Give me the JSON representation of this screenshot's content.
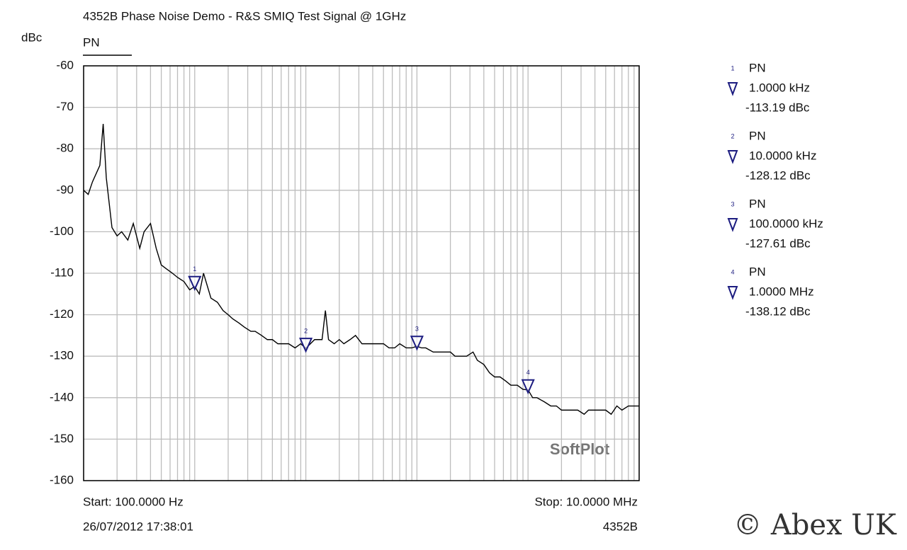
{
  "chart_data": {
    "type": "line",
    "title": "4352B Phase Noise Demo - R&S SMIQ Test Signal @ 1GHz",
    "y_label": "dBc",
    "xscale": "log",
    "xlim": [
      100,
      10000000
    ],
    "ylim": [
      -160,
      -60
    ],
    "yticks": [
      -60,
      -70,
      -80,
      -90,
      -100,
      -110,
      -120,
      -130,
      -140,
      -150,
      -160
    ],
    "xticks": [
      100,
      200,
      300,
      400,
      500,
      600,
      700,
      800,
      900,
      1000,
      2000,
      3000,
      4000,
      5000,
      6000,
      7000,
      8000,
      9000,
      10000,
      20000,
      30000,
      40000,
      50000,
      60000,
      70000,
      80000,
      90000,
      100000,
      200000,
      300000,
      400000,
      500000,
      600000,
      700000,
      800000,
      900000,
      1000000,
      2000000,
      3000000,
      4000000,
      5000000,
      6000000,
      7000000,
      8000000,
      9000000,
      10000000
    ],
    "grid": true,
    "series": [
      {
        "name": "PN",
        "color": "#000000",
        "x": [
          100,
          110,
          120,
          140,
          150,
          160,
          180,
          200,
          220,
          250,
          280,
          320,
          350,
          400,
          450,
          500,
          560,
          630,
          700,
          800,
          900,
          1000,
          1100,
          1200,
          1400,
          1600,
          1800,
          2000,
          2200,
          2500,
          2800,
          3200,
          3500,
          4000,
          4500,
          5000,
          5600,
          6300,
          7000,
          8000,
          9000,
          10000,
          11000,
          12000,
          14000,
          15000,
          16000,
          18000,
          20000,
          22000,
          25000,
          28000,
          32000,
          35000,
          40000,
          45000,
          50000,
          56000,
          63000,
          70000,
          80000,
          90000,
          100000,
          110000,
          120000,
          140000,
          160000,
          180000,
          200000,
          220000,
          250000,
          280000,
          320000,
          350000,
          400000,
          450000,
          500000,
          560000,
          630000,
          700000,
          800000,
          900000,
          1000000,
          1100000,
          1200000,
          1400000,
          1600000,
          1800000,
          2000000,
          2200000,
          2500000,
          2800000,
          3200000,
          3500000,
          4000000,
          4500000,
          5000000,
          5600000,
          6300000,
          7000000,
          8000000,
          9000000,
          10000000
        ],
        "values": [
          -90,
          -91,
          -88,
          -84,
          -74,
          -87,
          -99,
          -101,
          -100,
          -102,
          -98,
          -104,
          -100,
          -98,
          -104,
          -108,
          -109,
          -110,
          -111,
          -112,
          -114,
          -113.19,
          -115,
          -110,
          -116,
          -117,
          -119,
          -120,
          -121,
          -122,
          -123,
          -124,
          -124,
          -125,
          -126,
          -126,
          -127,
          -127,
          -127,
          -128,
          -127,
          -128.12,
          -127,
          -126,
          -126,
          -119,
          -126,
          -127,
          -126,
          -127,
          -126,
          -125,
          -127,
          -127,
          -127,
          -127,
          -127,
          -128,
          -128,
          -127,
          -128,
          -128,
          -127.61,
          -128,
          -128,
          -129,
          -129,
          -129,
          -129,
          -130,
          -130,
          -130,
          -129,
          -131,
          -132,
          -134,
          -135,
          -135,
          -136,
          -137,
          -137,
          -138,
          -138.12,
          -140,
          -140,
          -141,
          -142,
          -142,
          -143,
          -143,
          -143,
          -143,
          -144,
          -143,
          -143,
          -143,
          -143,
          -144,
          -142,
          -143,
          -142,
          -142,
          -142
        ]
      }
    ],
    "markers": {
      "labels": [
        "1",
        "2",
        "3",
        "4"
      ],
      "names": [
        "PN",
        "PN",
        "PN",
        "PN"
      ],
      "color": "#1c1c80",
      "x": [
        1000,
        10000,
        100000,
        1000000
      ],
      "x_labels": [
        "1.0000 kHz",
        "10.0000 kHz",
        "100.0000 kHz",
        "1.0000 MHz"
      ],
      "values": [
        -113.19,
        -128.12,
        -127.61,
        -138.12
      ],
      "value_labels": [
        "-113.19 dBc",
        "-128.12 dBc",
        "-127.61 dBc",
        "-138.12 dBc"
      ]
    },
    "start_label": "Start: 100.0000 Hz",
    "stop_label": "Stop: 10.0000 MHz",
    "timestamp": "26/07/2012 17:38:01",
    "instrument": "4352B",
    "watermarks": [
      "SoftPlot",
      "© Abex UK"
    ]
  }
}
